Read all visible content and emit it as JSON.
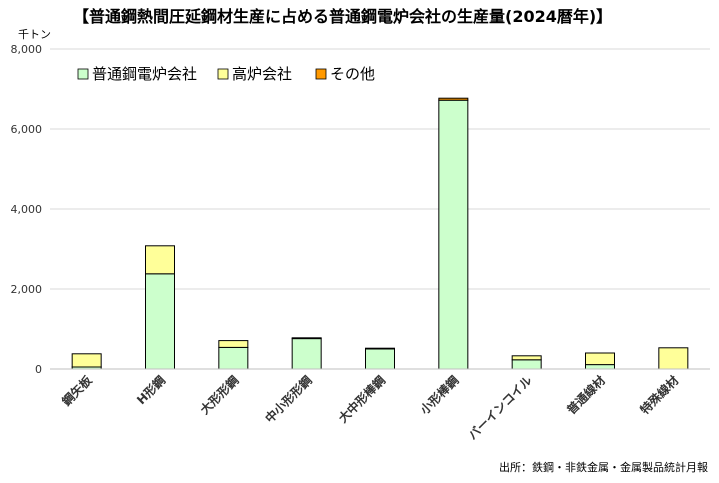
{
  "chart_data": {
    "type": "bar",
    "stacked": true,
    "title": "【普通鋼熱間圧延鋼材生産に占める普通鋼電炉会社の生産量(2024暦年)】",
    "unit": "千トン",
    "ylim": [
      0,
      8000
    ],
    "yticks": [
      "0",
      "2,000",
      "4,000",
      "6,000",
      "8,000"
    ],
    "ytick_values": [
      0,
      2000,
      4000,
      6000,
      8000
    ],
    "grid": true,
    "legend_position": "top-left",
    "categories": [
      "鋼矢板",
      "H形鋼",
      "大形形鋼",
      "中小形形鋼",
      "大中形棒鋼",
      "小形棒鋼",
      "バーインコイル",
      "普通線材",
      "特殊線材"
    ],
    "series": [
      {
        "name": "普通鋼電炉会社",
        "color": "#ccffcc",
        "values": [
          50,
          2380,
          540,
          760,
          510,
          6720,
          230,
          110,
          0
        ]
      },
      {
        "name": "高炉会社",
        "color": "#ffff99",
        "values": [
          330,
          700,
          170,
          20,
          10,
          0,
          100,
          290,
          530
        ]
      },
      {
        "name": "その他",
        "color": "#ff9900",
        "values": [
          0,
          0,
          0,
          0,
          0,
          50,
          0,
          0,
          0
        ]
      }
    ],
    "source": "出所：鉄鋼・非鉄金属・金属製品統計月報"
  }
}
